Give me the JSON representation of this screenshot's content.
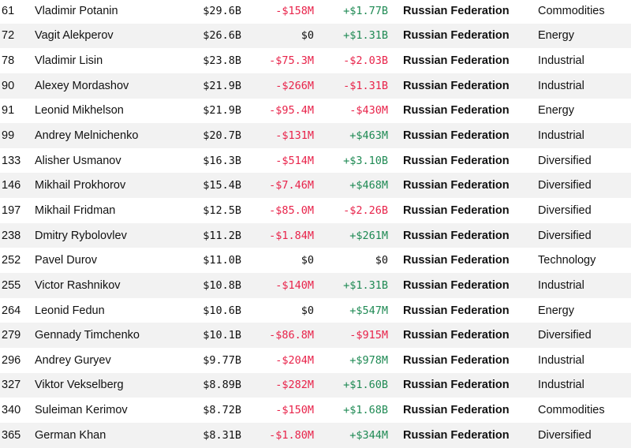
{
  "colors": {
    "negative": "#e8234a",
    "positive": "#1f8a54",
    "row_shade": "#f2f2f2"
  },
  "rows": [
    {
      "rank": "61",
      "name": "Vladimir Potanin",
      "net_worth": "$29.6B",
      "last_change": "-$158M",
      "last_dir": "neg",
      "ytd_change": "+$1.77B",
      "ytd_dir": "pos",
      "country": "Russian Federation",
      "industry": "Commodities"
    },
    {
      "rank": "72",
      "name": "Vagit Alekperov",
      "net_worth": "$26.6B",
      "last_change": "$0",
      "last_dir": "zero",
      "ytd_change": "+$1.31B",
      "ytd_dir": "pos",
      "country": "Russian Federation",
      "industry": "Energy"
    },
    {
      "rank": "78",
      "name": "Vladimir Lisin",
      "net_worth": "$23.8B",
      "last_change": "-$75.3M",
      "last_dir": "neg",
      "ytd_change": "-$2.03B",
      "ytd_dir": "neg",
      "country": "Russian Federation",
      "industry": "Industrial"
    },
    {
      "rank": "90",
      "name": "Alexey Mordashov",
      "net_worth": "$21.9B",
      "last_change": "-$266M",
      "last_dir": "neg",
      "ytd_change": "-$1.31B",
      "ytd_dir": "neg",
      "country": "Russian Federation",
      "industry": "Industrial"
    },
    {
      "rank": "91",
      "name": "Leonid Mikhelson",
      "net_worth": "$21.9B",
      "last_change": "-$95.4M",
      "last_dir": "neg",
      "ytd_change": "-$430M",
      "ytd_dir": "neg",
      "country": "Russian Federation",
      "industry": "Energy"
    },
    {
      "rank": "99",
      "name": "Andrey Melnichenko",
      "net_worth": "$20.7B",
      "last_change": "-$131M",
      "last_dir": "neg",
      "ytd_change": "+$463M",
      "ytd_dir": "pos",
      "country": "Russian Federation",
      "industry": "Industrial"
    },
    {
      "rank": "133",
      "name": "Alisher Usmanov",
      "net_worth": "$16.3B",
      "last_change": "-$514M",
      "last_dir": "neg",
      "ytd_change": "+$3.10B",
      "ytd_dir": "pos",
      "country": "Russian Federation",
      "industry": "Diversified"
    },
    {
      "rank": "146",
      "name": "Mikhail Prokhorov",
      "net_worth": "$15.4B",
      "last_change": "-$7.46M",
      "last_dir": "neg",
      "ytd_change": "+$468M",
      "ytd_dir": "pos",
      "country": "Russian Federation",
      "industry": "Diversified"
    },
    {
      "rank": "197",
      "name": "Mikhail Fridman",
      "net_worth": "$12.5B",
      "last_change": "-$85.0M",
      "last_dir": "neg",
      "ytd_change": "-$2.26B",
      "ytd_dir": "neg",
      "country": "Russian Federation",
      "industry": "Diversified"
    },
    {
      "rank": "238",
      "name": "Dmitry Rybolovlev",
      "net_worth": "$11.2B",
      "last_change": "-$1.84M",
      "last_dir": "neg",
      "ytd_change": "+$261M",
      "ytd_dir": "pos",
      "country": "Russian Federation",
      "industry": "Diversified"
    },
    {
      "rank": "252",
      "name": "Pavel Durov",
      "net_worth": "$11.0B",
      "last_change": "$0",
      "last_dir": "zero",
      "ytd_change": "$0",
      "ytd_dir": "zero",
      "country": "Russian Federation",
      "industry": "Technology"
    },
    {
      "rank": "255",
      "name": "Victor Rashnikov",
      "net_worth": "$10.8B",
      "last_change": "-$140M",
      "last_dir": "neg",
      "ytd_change": "+$1.31B",
      "ytd_dir": "pos",
      "country": "Russian Federation",
      "industry": "Industrial"
    },
    {
      "rank": "264",
      "name": "Leonid Fedun",
      "net_worth": "$10.6B",
      "last_change": "$0",
      "last_dir": "zero",
      "ytd_change": "+$547M",
      "ytd_dir": "pos",
      "country": "Russian Federation",
      "industry": "Energy"
    },
    {
      "rank": "279",
      "name": "Gennady Timchenko",
      "net_worth": "$10.1B",
      "last_change": "-$86.8M",
      "last_dir": "neg",
      "ytd_change": "-$915M",
      "ytd_dir": "neg",
      "country": "Russian Federation",
      "industry": "Diversified"
    },
    {
      "rank": "296",
      "name": "Andrey Guryev",
      "net_worth": "$9.77B",
      "last_change": "-$204M",
      "last_dir": "neg",
      "ytd_change": "+$978M",
      "ytd_dir": "pos",
      "country": "Russian Federation",
      "industry": "Industrial"
    },
    {
      "rank": "327",
      "name": "Viktor Vekselberg",
      "net_worth": "$8.89B",
      "last_change": "-$282M",
      "last_dir": "neg",
      "ytd_change": "+$1.60B",
      "ytd_dir": "pos",
      "country": "Russian Federation",
      "industry": "Industrial"
    },
    {
      "rank": "340",
      "name": "Suleiman Kerimov",
      "net_worth": "$8.72B",
      "last_change": "-$150M",
      "last_dir": "neg",
      "ytd_change": "+$1.68B",
      "ytd_dir": "pos",
      "country": "Russian Federation",
      "industry": "Commodities"
    },
    {
      "rank": "365",
      "name": "German Khan",
      "net_worth": "$8.31B",
      "last_change": "-$1.80M",
      "last_dir": "neg",
      "ytd_change": "+$344M",
      "ytd_dir": "pos",
      "country": "Russian Federation",
      "industry": "Diversified"
    }
  ]
}
